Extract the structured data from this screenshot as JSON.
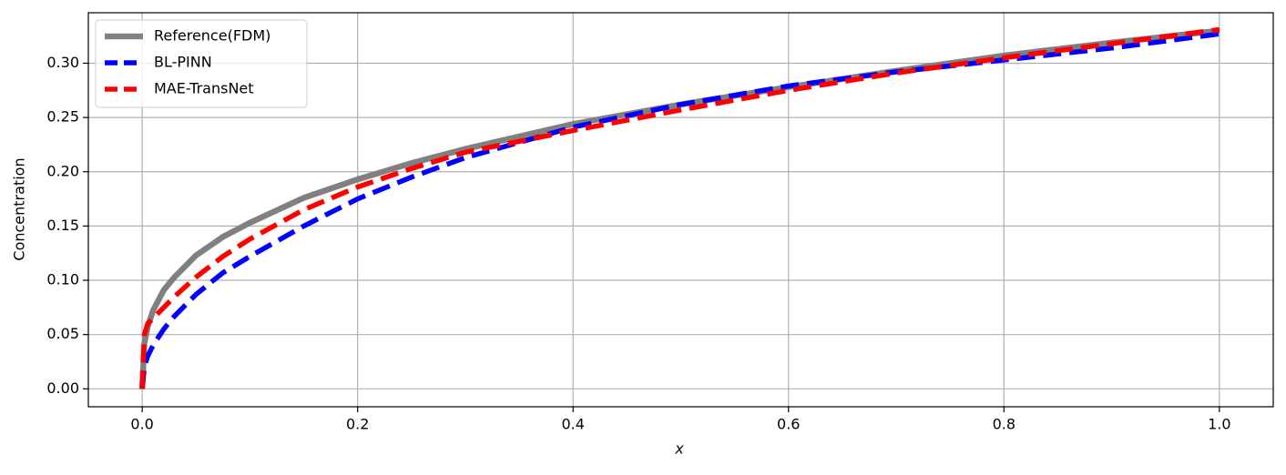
{
  "chart_data": {
    "type": "line",
    "xlabel": "x",
    "ylabel": "Concentration",
    "x": [
      0,
      0.002,
      0.005,
      0.01,
      0.02,
      0.03,
      0.05,
      0.075,
      0.1,
      0.15,
      0.2,
      0.25,
      0.3,
      0.4,
      0.5,
      0.6,
      0.7,
      0.8,
      0.9,
      1.0
    ],
    "series": [
      {
        "name": "Reference(FDM)",
        "color": "#808080",
        "style": "solid",
        "values": [
          0,
          0.042,
          0.057,
          0.072,
          0.091,
          0.103,
          0.123,
          0.14,
          0.153,
          0.176,
          0.193,
          0.208,
          0.221,
          0.244,
          0.262,
          0.278,
          0.293,
          0.307,
          0.319,
          0.33
        ]
      },
      {
        "name": "BL-PINN",
        "color": "#0000ff",
        "style": "dashed",
        "values": [
          0,
          0.02,
          0.03,
          0.04,
          0.055,
          0.067,
          0.087,
          0.107,
          0.122,
          0.15,
          0.175,
          0.195,
          0.213,
          0.241,
          0.262,
          0.279,
          0.292,
          0.303,
          0.314,
          0.327
        ]
      },
      {
        "name": "MAE-TransNet",
        "color": "#ff0000",
        "style": "dashed",
        "values": [
          0,
          0.05,
          0.06,
          0.065,
          0.075,
          0.085,
          0.103,
          0.122,
          0.138,
          0.165,
          0.186,
          0.203,
          0.218,
          0.238,
          0.257,
          0.275,
          0.291,
          0.305,
          0.318,
          0.331
        ]
      }
    ],
    "xlim": [
      -0.05,
      1.05
    ],
    "ylim": [
      -0.0165,
      0.3465
    ],
    "xticks": [
      {
        "value": 0,
        "label": "0.0"
      },
      0.2,
      0.4,
      0.6,
      0.8,
      {
        "value": 1,
        "label": "1.0"
      }
    ],
    "yticks": [
      {
        "value": 0,
        "label": "0.00"
      },
      0.05,
      {
        "value": 0.1,
        "label": "0.10"
      },
      0.15,
      {
        "value": 0.2,
        "label": "0.20"
      },
      0.25,
      {
        "value": 0.3,
        "label": "0.30"
      }
    ],
    "grid": true,
    "legend": "upper-left"
  }
}
